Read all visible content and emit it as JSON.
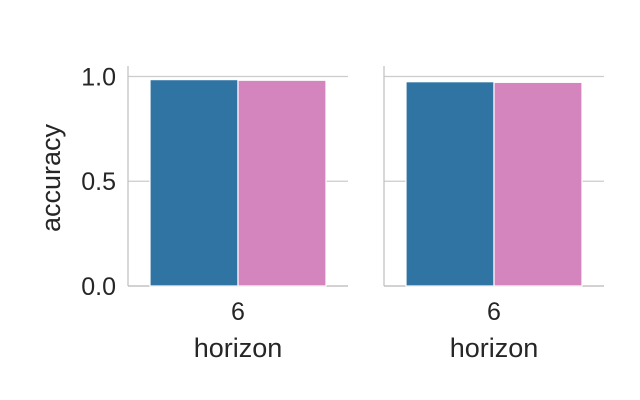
{
  "chart_data": {
    "type": "bar",
    "ylabel": "accuracy",
    "ylim": [
      0,
      1.05
    ],
    "yticks": [
      "0.0",
      "0.5",
      "1.0"
    ],
    "grid": true,
    "colors": [
      "#2f74a3",
      "#d585be"
    ],
    "panels": [
      {
        "xlabel": "horizon",
        "categories": [
          "6"
        ],
        "series": [
          {
            "values": [
              0.985
            ]
          },
          {
            "values": [
              0.982
            ]
          }
        ]
      },
      {
        "xlabel": "horizon",
        "categories": [
          "6"
        ],
        "series": [
          {
            "values": [
              0.975
            ]
          },
          {
            "values": [
              0.972
            ]
          }
        ]
      }
    ]
  }
}
